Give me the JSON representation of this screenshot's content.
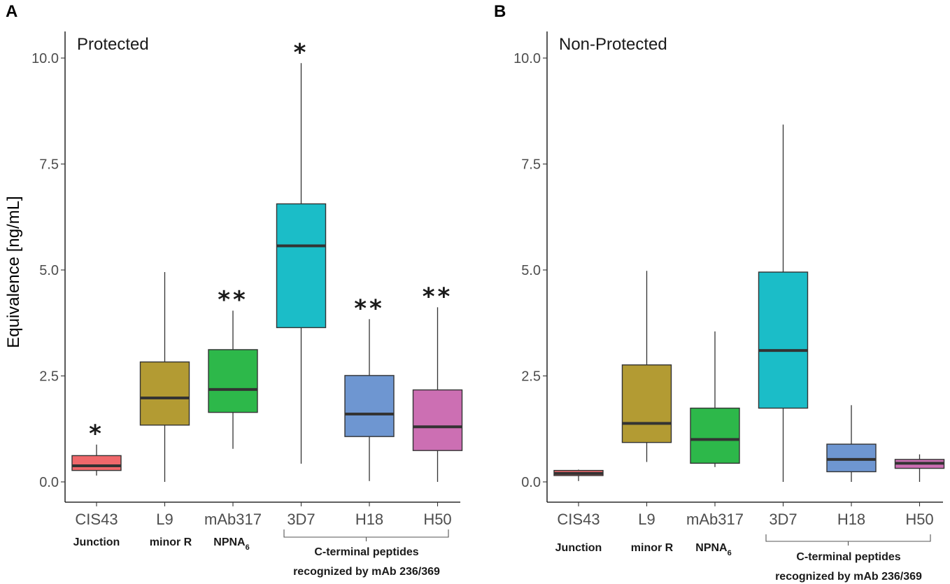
{
  "chart_data": [
    {
      "type": "boxplot",
      "panel": "A",
      "title": "Protected",
      "ylabel": "Equivalence [ng/mL]",
      "ylim": [
        -0.5,
        10.5
      ],
      "yticks": [
        "0.0",
        "2.5",
        "5.0",
        "7.5",
        "10.0"
      ],
      "categories": [
        "CIS43",
        "L9",
        "mAb317",
        "3D7",
        "H18",
        "H50"
      ],
      "colors": [
        "#f0686b",
        "#b39b33",
        "#2db84a",
        "#1bbdc8",
        "#6e96d1",
        "#cc6fb3"
      ],
      "boxes": [
        {
          "label": "CIS43",
          "lower_whisker": 0.15,
          "q1": 0.27,
          "median": 0.38,
          "q3": 0.62,
          "upper_whisker": 0.88
        },
        {
          "label": "L9",
          "lower_whisker": 0.0,
          "q1": 1.34,
          "median": 1.98,
          "q3": 2.83,
          "upper_whisker": 4.95
        },
        {
          "label": "mAb317",
          "lower_whisker": 0.78,
          "q1": 1.64,
          "median": 2.18,
          "q3": 3.12,
          "upper_whisker": 4.04
        },
        {
          "label": "3D7",
          "lower_whisker": 0.43,
          "q1": 3.64,
          "median": 5.57,
          "q3": 6.56,
          "upper_whisker": 9.88
        },
        {
          "label": "H18",
          "lower_whisker": 0.02,
          "q1": 1.07,
          "median": 1.6,
          "q3": 2.51,
          "upper_whisker": 3.84
        },
        {
          "label": "H50",
          "lower_whisker": 0.0,
          "q1": 0.74,
          "median": 1.3,
          "q3": 2.17,
          "upper_whisker": 4.12
        }
      ],
      "significance": [
        "*",
        "",
        "**",
        "*",
        "**",
        "**"
      ],
      "group_labels": {
        "junction": "Junction",
        "minor_r": "minor R",
        "npna": "NPNA",
        "npna_sub": "6",
        "cterm_line1": "C-terminal peptides",
        "cterm_line2": "recognized by mAb 236/369"
      }
    },
    {
      "type": "boxplot",
      "panel": "B",
      "title": "Non-Protected",
      "ylabel": "",
      "ylim": [
        -0.5,
        10.5
      ],
      "yticks": [
        "0.0",
        "2.5",
        "5.0",
        "7.5",
        "10.0"
      ],
      "categories": [
        "CIS43",
        "L9",
        "mAb317",
        "3D7",
        "H18",
        "H50"
      ],
      "colors": [
        "#f0686b",
        "#b39b33",
        "#2db84a",
        "#1bbdc8",
        "#6e96d1",
        "#cc6fb3"
      ],
      "boxes": [
        {
          "label": "CIS43",
          "lower_whisker": 0.02,
          "q1": 0.15,
          "median": 0.2,
          "q3": 0.27,
          "upper_whisker": 0.29
        },
        {
          "label": "L9",
          "lower_whisker": 0.47,
          "q1": 0.93,
          "median": 1.38,
          "q3": 2.76,
          "upper_whisker": 4.98
        },
        {
          "label": "mAb317",
          "lower_whisker": 0.35,
          "q1": 0.44,
          "median": 1.0,
          "q3": 1.74,
          "upper_whisker": 3.55
        },
        {
          "label": "3D7",
          "lower_whisker": 0.0,
          "q1": 1.74,
          "median": 3.1,
          "q3": 4.95,
          "upper_whisker": 8.43
        },
        {
          "label": "H18",
          "lower_whisker": 0.0,
          "q1": 0.24,
          "median": 0.53,
          "q3": 0.89,
          "upper_whisker": 1.81
        },
        {
          "label": "H50",
          "lower_whisker": 0.0,
          "q1": 0.32,
          "median": 0.44,
          "q3": 0.53,
          "upper_whisker": 0.65
        }
      ],
      "significance": [
        "",
        "",
        "",
        "",
        "",
        ""
      ],
      "group_labels": {
        "junction": "Junction",
        "minor_r": "minor R",
        "npna": "NPNA",
        "npna_sub": "6",
        "cterm_line1": "C-terminal peptides",
        "cterm_line2": "recognized by mAb 236/369"
      }
    }
  ]
}
